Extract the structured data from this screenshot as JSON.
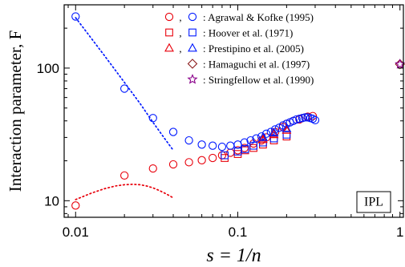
{
  "chart_data": {
    "type": "scatter",
    "xlabel": "s = 1/n",
    "ylabel": "Interaction parameter, F",
    "x_scale": "log",
    "y_scale": "log",
    "xlim": [
      0.0085,
      1.05
    ],
    "ylim": [
      7.5,
      300
    ],
    "xticks": [
      {
        "v": 0.01,
        "label": "0.01"
      },
      {
        "v": 0.1,
        "label": "0.1"
      },
      {
        "v": 1,
        "label": "1"
      }
    ],
    "yticks": [
      {
        "v": 10,
        "label": "10"
      },
      {
        "v": 100,
        "label": "100"
      }
    ],
    "annotation": "IPL",
    "colors": {
      "red": "#e8000b",
      "blue": "#0019ff",
      "purple": "#8a008a",
      "brown": "#8b1a1a"
    },
    "legend": {
      "placement": "top-right",
      "entries": [
        {
          "markers": [
            "circle-red",
            "circle-blue"
          ],
          "label": ": Agrawal & Kofke (1995)"
        },
        {
          "markers": [
            "square-red",
            "square-blue"
          ],
          "label": ": Hoover et al. (1971)"
        },
        {
          "markers": [
            "triangle-red",
            "triangle-blue"
          ],
          "label": ": Prestipino  et al. (2005)"
        },
        {
          "markers": [
            "diamond-brown"
          ],
          "label": ": Hamaguchi et al. (1997)"
        },
        {
          "markers": [
            "star-purple"
          ],
          "label": ": Stringfellow et al. (1990)"
        }
      ]
    },
    "series": [
      {
        "marker": "circle",
        "color": "red",
        "x": [
          0.01,
          0.02,
          0.03,
          0.04,
          0.05,
          0.06,
          0.07,
          0.08,
          0.09,
          0.1,
          0.11,
          0.125,
          0.14,
          0.15,
          0.17,
          0.19,
          0.2,
          0.22,
          0.24,
          0.25,
          0.27,
          0.29
        ],
        "y": [
          9.2,
          15.5,
          17.5,
          18.8,
          19.5,
          20.2,
          21.0,
          22.0,
          23.0,
          24.0,
          25.0,
          27.0,
          28.5,
          30.0,
          33.0,
          36.0,
          38.0,
          40.0,
          41.0,
          42.0,
          43.0,
          43.5
        ]
      },
      {
        "marker": "circle",
        "color": "blue",
        "x": [
          0.01,
          0.02,
          0.03,
          0.04,
          0.05,
          0.06,
          0.07,
          0.08,
          0.09,
          0.1,
          0.11,
          0.12,
          0.13,
          0.14,
          0.15,
          0.16,
          0.17,
          0.18,
          0.19,
          0.2,
          0.21,
          0.22,
          0.23,
          0.24,
          0.25,
          0.26,
          0.27,
          0.28,
          0.29,
          0.3
        ],
        "y": [
          245,
          70,
          42,
          33,
          28.5,
          26.5,
          26.0,
          25.5,
          26.0,
          26.5,
          27.5,
          28.5,
          29.5,
          30.5,
          32.0,
          33.0,
          34.5,
          35.5,
          37.0,
          38.0,
          39.0,
          40.0,
          41.0,
          41.5,
          42.0,
          42.5,
          42.5,
          42.0,
          41.5,
          40.5
        ]
      },
      {
        "marker": "square",
        "color": "red",
        "x": [
          0.083,
          0.1,
          0.111,
          0.125,
          0.143,
          0.167,
          0.2
        ],
        "y": [
          21.0,
          22.5,
          24.0,
          25.0,
          26.5,
          28.5,
          30.5
        ]
      },
      {
        "marker": "square",
        "color": "blue",
        "x": [
          0.083,
          0.1,
          0.111,
          0.125,
          0.143,
          0.167,
          0.2
        ],
        "y": [
          22.0,
          23.5,
          24.5,
          26.0,
          27.5,
          29.5,
          31.5
        ]
      },
      {
        "marker": "triangle",
        "color": "red",
        "x": [
          0.143,
          0.167,
          0.2
        ],
        "y": [
          29.0,
          31.5,
          34.0
        ]
      },
      {
        "marker": "triangle",
        "color": "blue",
        "x": [
          0.143,
          0.167,
          0.2
        ],
        "y": [
          30.0,
          32.5,
          35.0
        ]
      },
      {
        "marker": "diamond",
        "color": "brown",
        "x": [
          1.0
        ],
        "y": [
          107
        ]
      },
      {
        "marker": "star",
        "color": "purple",
        "x": [
          1.0
        ],
        "y": [
          107
        ]
      }
    ],
    "curves": [
      {
        "color": "blue",
        "style": "dotted",
        "x": [
          0.01,
          0.015,
          0.02,
          0.025,
          0.03,
          0.035,
          0.04
        ],
        "y": [
          240,
          125,
          78,
          54,
          39,
          30,
          24
        ]
      },
      {
        "color": "red",
        "style": "dotted",
        "x": [
          0.01,
          0.0125,
          0.015,
          0.0175,
          0.02,
          0.0225,
          0.025,
          0.0275,
          0.03,
          0.0325,
          0.035,
          0.0375,
          0.04
        ],
        "y": [
          10.2,
          11.4,
          12.3,
          12.9,
          13.2,
          13.3,
          13.2,
          12.9,
          12.5,
          12.0,
          11.5,
          11.0,
          10.5
        ]
      }
    ]
  }
}
